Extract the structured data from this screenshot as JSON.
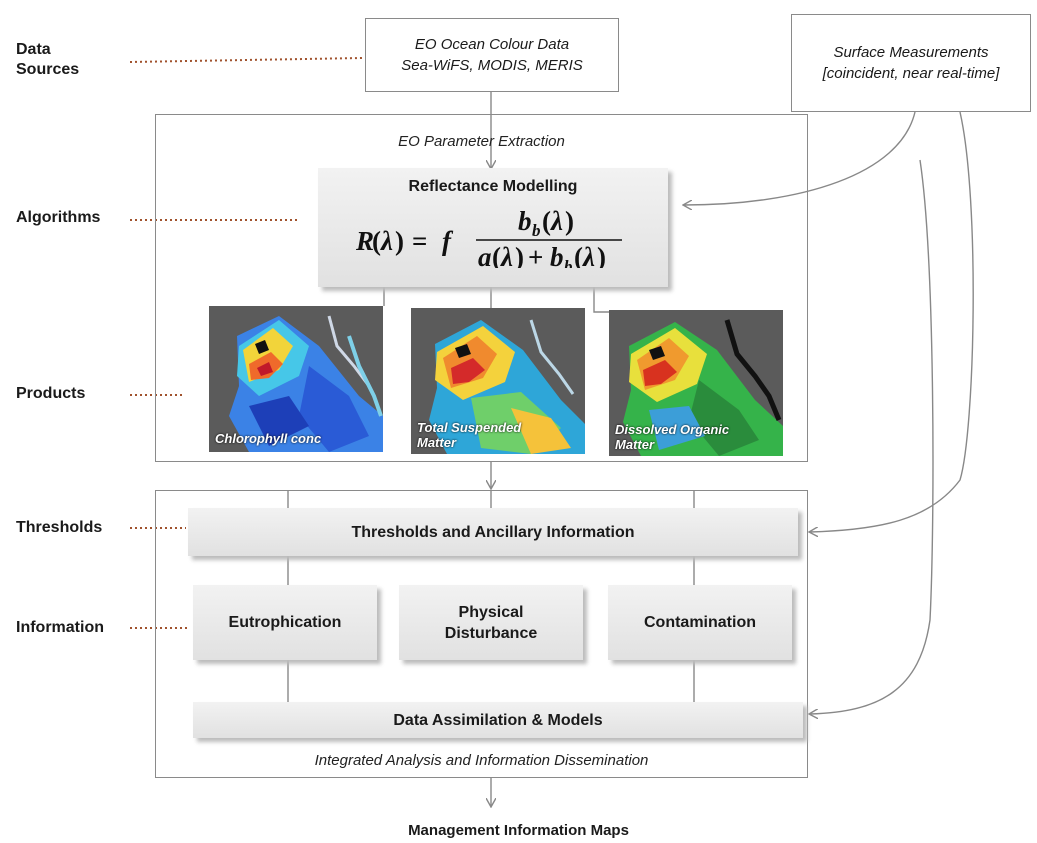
{
  "side_labels": {
    "data_sources": "Data\nSources",
    "algorithms": "Algorithms",
    "products": "Products",
    "thresholds": "Thresholds",
    "information": "Information"
  },
  "sources": {
    "eo_line1": "EO Ocean Colour Data",
    "eo_line2": "Sea-WiFS, MODIS, MERIS",
    "surface_line1": "Surface Measurements",
    "surface_line2": "[coincident, near real-time]"
  },
  "panel_top": {
    "caption": "EO Parameter Extraction"
  },
  "model": {
    "title": "Reflectance Modelling",
    "formula_lhs": "R(λ) = f",
    "formula_num": "b_b(λ)",
    "formula_den": "a(λ) + b_b(λ)"
  },
  "products": [
    {
      "label": "Chlorophyll conc"
    },
    {
      "label": "Total Suspended\nMatter"
    },
    {
      "label": "Dissolved Organic\nMatter"
    }
  ],
  "panel_bottom": {
    "thresholds": "Thresholds and Ancillary Information",
    "info_boxes": [
      "Eutrophication",
      "Physical\nDisturbance",
      "Contamination"
    ],
    "assimilation": "Data Assimilation & Models",
    "caption": "Integrated Analysis and Information Dissemination"
  },
  "output": {
    "title": "Management Information Maps"
  },
  "colors": {
    "frame": "#8a8a8a",
    "dotted": "#a0522d",
    "arrow": "#888888"
  }
}
